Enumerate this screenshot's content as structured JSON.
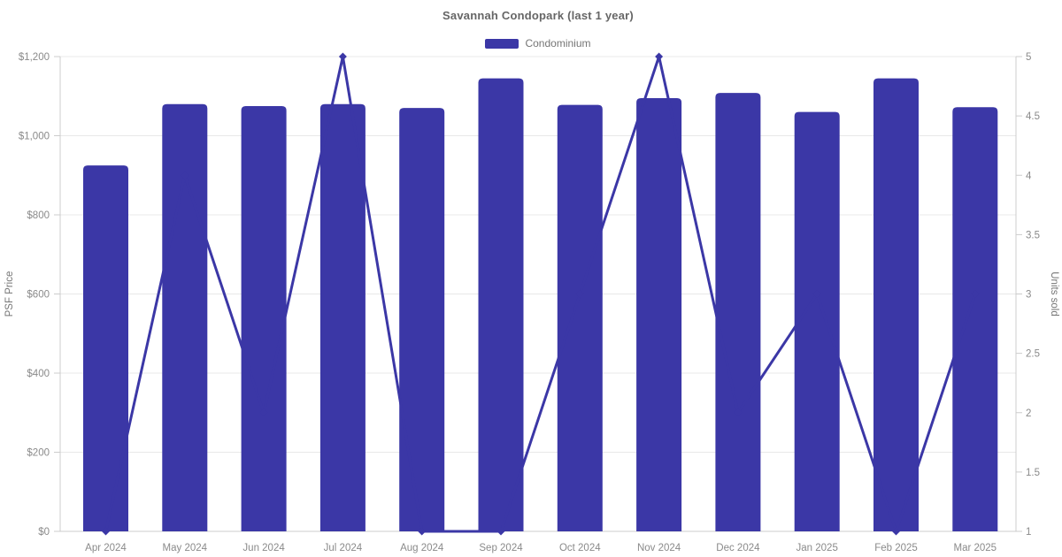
{
  "title": "Savannah Condopark (last 1 year)",
  "colors": {
    "accent": "#3b37a6",
    "grid": "#e8e8e8",
    "axis_line": "#cccccc",
    "tick_text": "#8a8a8a",
    "axis_title_text": "#757575",
    "title_text": "#666666",
    "legend_text": "#757575",
    "background": "#ffffff"
  },
  "chart_data": {
    "type": "bar",
    "subtype": "bar-line-combo-dual-axis",
    "title": "Savannah Condopark (last 1 year)",
    "categories": [
      "Apr 2024",
      "May 2024",
      "Jun 2024",
      "Jul 2024",
      "Aug 2024",
      "Sep 2024",
      "Oct 2024",
      "Nov 2024",
      "Dec 2024",
      "Jan 2025",
      "Feb 2025",
      "Mar 2025"
    ],
    "series": [
      {
        "name": "Condominium",
        "type": "bar",
        "axis": "left",
        "values": [
          925,
          1080,
          1075,
          1080,
          1070,
          1145,
          1078,
          1095,
          1108,
          1060,
          1145,
          1072
        ]
      },
      {
        "name": "Units sold",
        "type": "line",
        "axis": "right",
        "marker": "diamond",
        "values": [
          1,
          4,
          2,
          5,
          1,
          1,
          3,
          5,
          2,
          3,
          1,
          3
        ]
      }
    ],
    "xlabel": "",
    "ylabel_left": "PSF Price",
    "ylabel_right": "Units sold",
    "ylim_left": [
      0,
      1200
    ],
    "ylim_right": [
      1,
      5
    ],
    "y_ticks_left_values": [
      0,
      200,
      400,
      600,
      800,
      1000,
      1200
    ],
    "y_ticks_left_labels": [
      "$0",
      "$200",
      "$400",
      "$600",
      "$800",
      "$1,000",
      "$1,200"
    ],
    "y_ticks_right_values": [
      1,
      1.5,
      2,
      2.5,
      3,
      3.5,
      4,
      4.5,
      5
    ],
    "y_ticks_right_labels": [
      "1",
      "1.5",
      "2",
      "2.5",
      "3",
      "3.5",
      "4",
      "4.5",
      "5"
    ],
    "grid": "horizontal-left-axis-only",
    "legend_position": "top-center"
  }
}
